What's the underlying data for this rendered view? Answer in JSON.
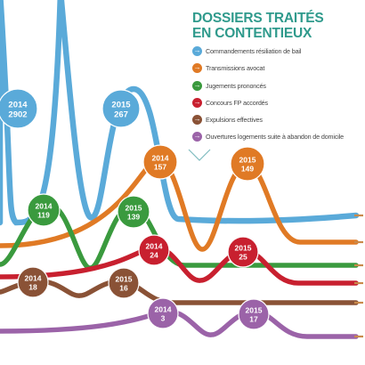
{
  "header": {
    "title_line1": "DOSSIERS TRAITÉS",
    "title_line2": "EN CONTENTIEUX"
  },
  "legend": [
    {
      "label": "Commandements résiliation de bail",
      "color": "#5aaad9"
    },
    {
      "label": "Transmissions avocat",
      "color": "#e07a25"
    },
    {
      "label": "Jugements prononcés",
      "color": "#3a9a3e"
    },
    {
      "label": "Concours FP accordés",
      "color": "#c8202f"
    },
    {
      "label": "Expulsions effectives",
      "color": "#8a5236"
    },
    {
      "label": "Ouvertures logements suite à abandon de domicile",
      "color": "#9b63a8"
    }
  ],
  "chart_data": {
    "type": "line",
    "title": "DOSSIERS TRAITÉS EN CONTENTIEUX",
    "x": [
      "2014",
      "2015"
    ],
    "series": [
      {
        "name": "Commandements résiliation de bail",
        "color": "#5aaad9",
        "values": [
          2902,
          267
        ]
      },
      {
        "name": "Transmissions avocat",
        "color": "#e07a25",
        "values": [
          157,
          149
        ]
      },
      {
        "name": "Jugements prononcés",
        "color": "#3a9a3e",
        "values": [
          119,
          139
        ]
      },
      {
        "name": "Concours FP accordés",
        "color": "#c8202f",
        "values": [
          24,
          25
        ]
      },
      {
        "name": "Expulsions effectives",
        "color": "#8a5236",
        "values": [
          18,
          16
        ]
      },
      {
        "name": "Ouvertures logements suite à abandon de domicile",
        "color": "#9b63a8",
        "values": [
          3,
          17
        ]
      }
    ]
  }
}
